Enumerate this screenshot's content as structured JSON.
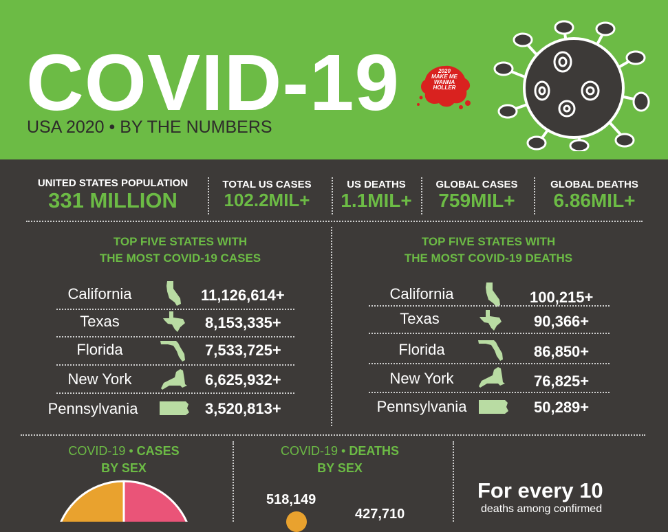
{
  "header": {
    "title": "COVID-19",
    "subtitle": "USA 2020 • BY THE NUMBERS",
    "badge_lines": [
      "2020",
      "MAKE ME",
      "WANNA",
      "HOLLER"
    ]
  },
  "stats": [
    {
      "label": "UNITED STATES POPULATION",
      "value": "331 MILLION"
    },
    {
      "label": "TOTAL US CASES",
      "value": "102.2MIL+"
    },
    {
      "label": "US DEATHS",
      "value": "1.1MIL+"
    },
    {
      "label": "GLOBAL CASES",
      "value": "759MIL+"
    },
    {
      "label": "GLOBAL DEATHS",
      "value": "6.86MIL+"
    }
  ],
  "cases_section": {
    "title_line1": "TOP FIVE STATES WITH",
    "title_line2": "THE MOST COVID-19 CASES",
    "rows": [
      {
        "state": "California",
        "value": "11,126,614+",
        "icon": "california-map-icon"
      },
      {
        "state": "Texas",
        "value": "8,153,335+",
        "icon": "texas-map-icon"
      },
      {
        "state": "Florida",
        "value": "7,533,725+",
        "icon": "florida-map-icon"
      },
      {
        "state": "New York",
        "value": "6,625,932+",
        "icon": "new-york-map-icon"
      },
      {
        "state": "Pennsylvania",
        "value": "3,520,813+",
        "icon": "pennsylvania-map-icon"
      }
    ]
  },
  "deaths_section": {
    "title_line1": "TOP FIVE STATES WITH",
    "title_line2": "THE MOST COVID-19 DEATHS",
    "rows": [
      {
        "state": "California",
        "value": "100,215+",
        "icon": "california-map-icon"
      },
      {
        "state": "Texas",
        "value": "90,366+",
        "icon": "texas-map-icon"
      },
      {
        "state": "Florida",
        "value": "86,850+",
        "icon": "florida-map-icon"
      },
      {
        "state": "New York",
        "value": "76,825+",
        "icon": "new-york-map-icon"
      },
      {
        "state": "Pennsylvania",
        "value": "50,289+",
        "icon": "pennsylvania-map-icon"
      }
    ]
  },
  "bottom": {
    "cases_by_sex": {
      "prefix": "COVID-19 • ",
      "bold": "CASES",
      "line2": "BY SEX"
    },
    "deaths_by_sex": {
      "prefix": "COVID-19 • ",
      "bold": "DEATHS",
      "line2": "BY SEX",
      "value1": "518,149",
      "value2": "427,710"
    },
    "for_every": {
      "headline": "For every 10",
      "text": "deaths among confirmed"
    }
  },
  "colors": {
    "green": "#6cbb45",
    "dark": "#3d3a38",
    "orange": "#e9a22e",
    "pink": "#ea5478",
    "map_fill": "#b9dca3",
    "red": "#d9221f"
  }
}
